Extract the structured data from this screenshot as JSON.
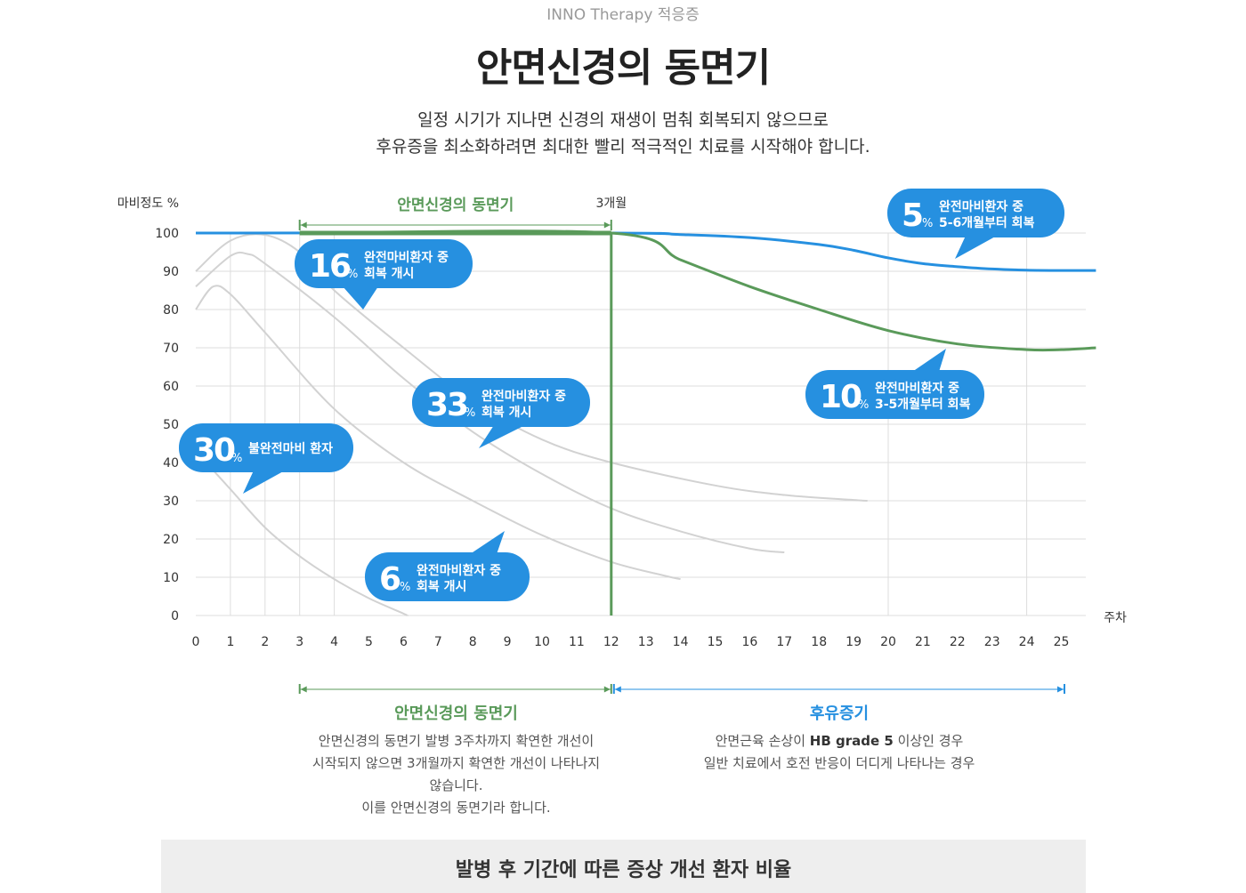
{
  "header": {
    "kicker": "INNO Therapy 적응증",
    "title": "안면신경의 동면기",
    "desc_line1": "일정 시기가 지나면 신경의 재생이 멈춰 회복되지 않으므로",
    "desc_line2": "후유증을 최소화하려면 최대한 빨리 적극적인 치료를 시작해야 합니다."
  },
  "chart_data": {
    "type": "line",
    "ylabel": "마비정도 %",
    "xlabel": "주차",
    "xlim": [
      0,
      26
    ],
    "ylim": [
      0,
      100
    ],
    "x_ticks": [
      0,
      1,
      2,
      3,
      4,
      5,
      6,
      7,
      8,
      9,
      10,
      11,
      12,
      13,
      14,
      15,
      16,
      17,
      18,
      19,
      20,
      21,
      22,
      23,
      24,
      25
    ],
    "y_ticks": [
      0,
      10,
      20,
      30,
      40,
      50,
      60,
      70,
      80,
      90,
      100
    ],
    "grid": true,
    "hibernation_label": "안면신경의 동면기",
    "hibernation_range": [
      3,
      12
    ],
    "marker_label": "3개월",
    "marker_x": 12,
    "series": [
      {
        "color": "#d2d2d2",
        "points": [
          [
            0,
            90
          ],
          [
            1,
            98
          ],
          [
            2,
            99.5
          ],
          [
            3,
            95
          ],
          [
            4,
            85
          ],
          [
            6,
            70
          ],
          [
            8,
            56
          ],
          [
            10,
            46
          ],
          [
            12,
            40
          ],
          [
            15,
            34
          ],
          [
            17,
            31.5
          ],
          [
            19,
            30.2
          ],
          [
            19.4,
            30
          ]
        ]
      },
      {
        "color": "#d2d2d2",
        "points": [
          [
            0,
            86
          ],
          [
            1,
            94
          ],
          [
            1.5,
            94.5
          ],
          [
            2,
            92
          ],
          [
            4,
            78
          ],
          [
            6,
            62
          ],
          [
            8,
            48
          ],
          [
            10,
            37
          ],
          [
            12,
            28
          ],
          [
            14,
            22
          ],
          [
            16,
            17.5
          ],
          [
            17,
            16.5
          ]
        ]
      },
      {
        "color": "#d2d2d2",
        "points": [
          [
            0,
            80
          ],
          [
            0.5,
            86
          ],
          [
            1,
            84
          ],
          [
            2,
            74
          ],
          [
            4,
            54
          ],
          [
            6,
            40
          ],
          [
            8,
            30
          ],
          [
            10,
            21
          ],
          [
            12,
            14
          ],
          [
            13.5,
            10.5
          ],
          [
            14,
            9.5
          ]
        ]
      },
      {
        "color": "#d2d2d2",
        "points": [
          [
            0,
            43
          ],
          [
            1,
            33
          ],
          [
            2,
            23
          ],
          [
            3,
            15.5
          ],
          [
            4,
            9.5
          ],
          [
            5,
            4.5
          ],
          [
            6,
            0.5
          ],
          [
            6.1,
            0
          ]
        ]
      },
      {
        "color": "#2690e0",
        "points": [
          [
            0,
            100
          ],
          [
            12,
            100
          ],
          [
            14,
            99.6
          ],
          [
            16,
            98.8
          ],
          [
            18,
            97
          ],
          [
            19,
            95.5
          ],
          [
            20,
            93.5
          ],
          [
            21,
            92
          ],
          [
            22,
            91.2
          ],
          [
            23,
            90.6
          ],
          [
            24,
            90.3
          ],
          [
            25,
            90.2
          ],
          [
            26,
            90.2
          ]
        ]
      },
      {
        "color": "#5a9a5a",
        "points": [
          [
            3,
            100
          ],
          [
            12,
            100
          ],
          [
            14,
            93
          ],
          [
            16,
            86
          ],
          [
            18,
            80
          ],
          [
            20,
            74.5
          ],
          [
            22,
            71
          ],
          [
            24,
            69.5
          ],
          [
            25,
            69.5
          ],
          [
            26,
            70
          ]
        ]
      }
    ],
    "callouts": [
      {
        "big": "16",
        "pct": "%",
        "line1": "완전마비환자 중",
        "line2": "회복 개시"
      },
      {
        "big": "33",
        "pct": "%",
        "line1": "완전마비환자 중",
        "line2": "회복 개시"
      },
      {
        "big": "30",
        "pct": "%",
        "line1": "불완전마비 환자",
        "line2": ""
      },
      {
        "big": "6",
        "pct": "%",
        "line1": "완전마비환자 중",
        "line2": "회복 개시"
      },
      {
        "big": "5",
        "pct": "%",
        "line1": "완전마비환자 중",
        "line2": "5-6개월부터 회복"
      },
      {
        "big": "10",
        "pct": "%",
        "line1": "완전마비환자 중",
        "line2": "3-5개월부터 회복"
      }
    ],
    "colors": {
      "blue": "#2690e0",
      "green": "#5a9a5a",
      "grid": "#dddddd"
    }
  },
  "sections": {
    "hibernation": {
      "title": "안면신경의 동면기",
      "lines": [
        "안면신경의 동면기 발병 3주차까지 확연한 개선이",
        "시작되지 않으면 3개월까지 확연한 개선이 나타나지",
        "않습니다.",
        "이를 안면신경의 동면기라 합니다."
      ]
    },
    "sequela": {
      "title": "후유증기",
      "pre": "안면근육 손상이 ",
      "bold": "HB grade 5",
      "post": " 이상인 경우",
      "line2": "일반 치료에서 호전 반응이 더디게 나타나는 경우"
    }
  },
  "caption": "발병 후 기간에 따른 증상 개선 환자 비율"
}
